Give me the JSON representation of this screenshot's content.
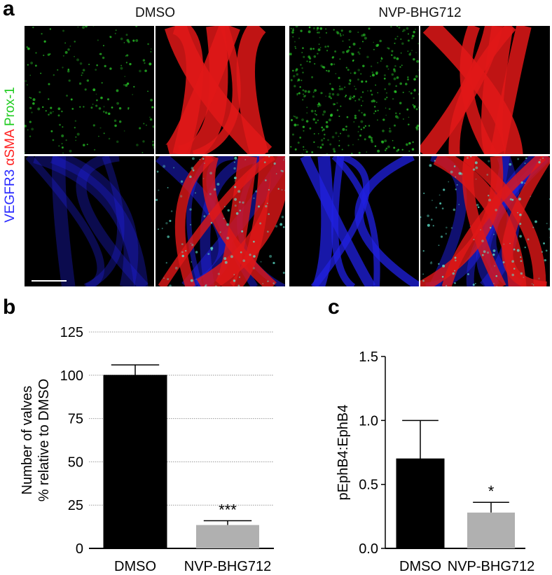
{
  "panel_a": {
    "label": "a",
    "groups": [
      "DMSO",
      "NVP-BHG712"
    ],
    "channel_labels": [
      {
        "text": "VEGFR3",
        "color": "#2a2aff"
      },
      {
        "text": " αSMA",
        "color": "#ff2020"
      },
      {
        "text": " Prox-1",
        "color": "#22cc22"
      }
    ],
    "tile_colors": {
      "green": "#2bd42b",
      "red": "#e01818",
      "blue": "#2020e0"
    }
  },
  "chart_data": [
    {
      "panel_label": "b",
      "type": "bar",
      "categories": [
        "DMSO",
        "NVP-BHG712"
      ],
      "values": [
        100,
        13.5
      ],
      "error_upper": [
        6,
        2.5
      ],
      "bar_colors": [
        "#000000",
        "#b0b0b0"
      ],
      "annotations": [
        "",
        "***"
      ],
      "ylabel": [
        "Number of valves",
        "% relative to DMSO"
      ],
      "ylim": [
        0,
        125
      ],
      "yticks": [
        "0",
        "25",
        "50",
        "75",
        "100",
        "125"
      ],
      "grid": "horizontal dotted"
    },
    {
      "panel_label": "c",
      "type": "bar",
      "categories": [
        "DMSO",
        "NVP-BHG712"
      ],
      "values": [
        0.7,
        0.28
      ],
      "error_upper": [
        0.3,
        0.08
      ],
      "bar_colors": [
        "#000000",
        "#b0b0b0"
      ],
      "annotations": [
        "",
        "*"
      ],
      "ylabel": "pEphB4:EphB4",
      "ylim": [
        0,
        1.5
      ],
      "yticks": [
        "0.0",
        "0.5",
        "1.0",
        "1.5"
      ],
      "grid": "off"
    }
  ]
}
